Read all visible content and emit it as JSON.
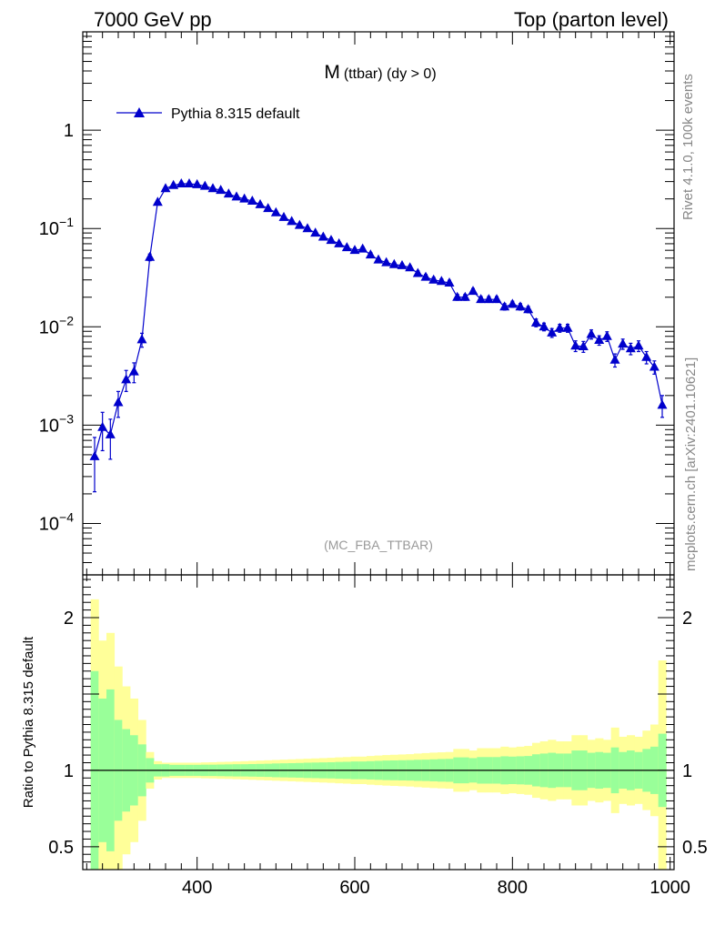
{
  "header": {
    "left": "7000 GeV pp",
    "right": "Top (parton level)"
  },
  "side_labels": {
    "rivet": "Rivet 4.1.0,  100k events",
    "mcplots": "mcplots.cern.ch [arXiv:2401.10621]"
  },
  "chart_data": [
    {
      "type": "line",
      "title_main": "M",
      "title_sub": "(ttbar) (dy > 0)",
      "watermark": "(MC_FBA_TTBAR)",
      "legend": "Pythia 8.315 default",
      "legend_position": "top-left",
      "xlim": [
        255,
        1005
      ],
      "ylim": [
        3e-05,
        10
      ],
      "yscale": "log",
      "y_tick_labels": [
        {
          "value": 1,
          "base": "1",
          "exp": ""
        },
        {
          "value": 0.1,
          "base": "10",
          "exp": "−1"
        },
        {
          "value": 0.01,
          "base": "10",
          "exp": "−2"
        },
        {
          "value": 0.001,
          "base": "10",
          "exp": "−3"
        },
        {
          "value": 0.0001,
          "base": "10",
          "exp": "−4"
        }
      ],
      "color": "#0000cc",
      "series": [
        {
          "name": "Pythia 8.315 default",
          "x": [
            270,
            280,
            290,
            300,
            310,
            320,
            330,
            340,
            350,
            360,
            370,
            380,
            390,
            400,
            410,
            420,
            430,
            440,
            450,
            460,
            470,
            480,
            490,
            500,
            510,
            520,
            530,
            540,
            550,
            560,
            570,
            580,
            590,
            600,
            610,
            620,
            630,
            640,
            650,
            660,
            670,
            680,
            690,
            700,
            710,
            720,
            730,
            740,
            750,
            760,
            770,
            780,
            790,
            800,
            810,
            820,
            830,
            840,
            850,
            860,
            870,
            880,
            890,
            900,
            910,
            920,
            930,
            940,
            950,
            960,
            970,
            980,
            990
          ],
          "y": [
            0.00048,
            0.00095,
            0.0008,
            0.0017,
            0.0029,
            0.0035,
            0.0074,
            0.051,
            0.185,
            0.255,
            0.275,
            0.285,
            0.285,
            0.28,
            0.27,
            0.255,
            0.245,
            0.225,
            0.21,
            0.2,
            0.19,
            0.175,
            0.16,
            0.145,
            0.13,
            0.118,
            0.108,
            0.1,
            0.09,
            0.082,
            0.076,
            0.07,
            0.064,
            0.06,
            0.062,
            0.054,
            0.048,
            0.045,
            0.043,
            0.042,
            0.04,
            0.035,
            0.032,
            0.03,
            0.029,
            0.028,
            0.02,
            0.02,
            0.023,
            0.019,
            0.019,
            0.019,
            0.016,
            0.017,
            0.016,
            0.015,
            0.011,
            0.01,
            0.0087,
            0.0097,
            0.0097,
            0.0064,
            0.0063,
            0.0084,
            0.0073,
            0.008,
            0.0046,
            0.0067,
            0.006,
            0.0064,
            0.0049,
            0.0039,
            0.0016
          ],
          "err": [
            0.00027,
            0.0004,
            0.00035,
            0.0005,
            0.0007,
            0.0008,
            0.0012,
            0.004,
            0.008,
            0.01,
            0.01,
            0.01,
            0.01,
            0.01,
            0.01,
            0.009,
            0.009,
            0.008,
            0.008,
            0.007,
            0.007,
            0.007,
            0.006,
            0.006,
            0.005,
            0.005,
            0.005,
            0.004,
            0.004,
            0.004,
            0.004,
            0.003,
            0.003,
            0.003,
            0.003,
            0.003,
            0.002,
            0.002,
            0.002,
            0.002,
            0.002,
            0.002,
            0.002,
            0.0018,
            0.0017,
            0.0017,
            0.0014,
            0.0014,
            0.0015,
            0.0013,
            0.0013,
            0.0013,
            0.0012,
            0.0012,
            0.0012,
            0.0011,
            0.001,
            0.0009,
            0.0009,
            0.0009,
            0.0009,
            0.0008,
            0.0008,
            0.0009,
            0.0008,
            0.0009,
            0.0007,
            0.0008,
            0.0008,
            0.0008,
            0.0007,
            0.0006,
            0.0004
          ]
        }
      ]
    },
    {
      "type": "area",
      "ylabel": "Ratio to Pythia 8.315 default",
      "xlim": [
        255,
        1005
      ],
      "ylim": [
        0.35,
        2.28
      ],
      "x_tick_labels": [
        400,
        600,
        800,
        1000
      ],
      "y_tick_labels": [
        0.5,
        1,
        2
      ],
      "reference_line": 1,
      "band_colors": {
        "inner": "#99ff99",
        "outer": "#ffff99"
      },
      "bin_width": 10,
      "bins_x": [
        270,
        280,
        290,
        300,
        310,
        320,
        330,
        340,
        350,
        360,
        370,
        380,
        390,
        400,
        410,
        420,
        430,
        440,
        450,
        460,
        470,
        480,
        490,
        500,
        510,
        520,
        530,
        540,
        550,
        560,
        570,
        580,
        590,
        600,
        610,
        620,
        630,
        640,
        650,
        660,
        670,
        680,
        690,
        700,
        710,
        720,
        730,
        740,
        750,
        760,
        770,
        780,
        790,
        800,
        810,
        820,
        830,
        840,
        850,
        860,
        870,
        880,
        890,
        900,
        910,
        920,
        930,
        940,
        950,
        960,
        970,
        980,
        990
      ],
      "inner_upper": [
        1.65,
        1.47,
        1.53,
        1.33,
        1.27,
        1.23,
        1.17,
        1.08,
        1.04,
        1.04,
        1.036,
        1.036,
        1.036,
        1.036,
        1.037,
        1.037,
        1.038,
        1.039,
        1.04,
        1.04,
        1.041,
        1.042,
        1.043,
        1.045,
        1.046,
        1.047,
        1.048,
        1.05,
        1.051,
        1.052,
        1.053,
        1.055,
        1.056,
        1.058,
        1.058,
        1.06,
        1.062,
        1.064,
        1.065,
        1.066,
        1.067,
        1.069,
        1.07,
        1.072,
        1.074,
        1.075,
        1.085,
        1.085,
        1.08,
        1.087,
        1.087,
        1.087,
        1.092,
        1.09,
        1.092,
        1.094,
        1.105,
        1.11,
        1.115,
        1.11,
        1.11,
        1.13,
        1.13,
        1.115,
        1.12,
        1.115,
        1.15,
        1.12,
        1.13,
        1.12,
        1.14,
        1.155,
        1.24
      ],
      "inner_lower": [
        0.35,
        0.53,
        0.47,
        0.67,
        0.73,
        0.77,
        0.83,
        0.92,
        0.96,
        0.96,
        0.964,
        0.964,
        0.964,
        0.964,
        0.963,
        0.963,
        0.962,
        0.961,
        0.96,
        0.96,
        0.959,
        0.958,
        0.957,
        0.955,
        0.954,
        0.953,
        0.952,
        0.95,
        0.949,
        0.948,
        0.947,
        0.945,
        0.944,
        0.942,
        0.942,
        0.94,
        0.938,
        0.936,
        0.935,
        0.934,
        0.933,
        0.931,
        0.93,
        0.928,
        0.926,
        0.925,
        0.915,
        0.915,
        0.92,
        0.913,
        0.913,
        0.913,
        0.908,
        0.91,
        0.908,
        0.906,
        0.895,
        0.89,
        0.885,
        0.89,
        0.89,
        0.87,
        0.87,
        0.885,
        0.88,
        0.885,
        0.85,
        0.88,
        0.87,
        0.88,
        0.86,
        0.845,
        0.76
      ],
      "outer_upper": [
        2.12,
        1.85,
        1.9,
        1.68,
        1.55,
        1.47,
        1.33,
        1.12,
        1.06,
        1.05,
        1.05,
        1.05,
        1.05,
        1.05,
        1.052,
        1.053,
        1.055,
        1.056,
        1.058,
        1.06,
        1.062,
        1.064,
        1.066,
        1.068,
        1.07,
        1.072,
        1.074,
        1.076,
        1.078,
        1.08,
        1.082,
        1.085,
        1.087,
        1.09,
        1.09,
        1.094,
        1.097,
        1.1,
        1.102,
        1.104,
        1.106,
        1.11,
        1.113,
        1.116,
        1.118,
        1.12,
        1.14,
        1.14,
        1.13,
        1.145,
        1.145,
        1.145,
        1.155,
        1.15,
        1.155,
        1.16,
        1.18,
        1.19,
        1.2,
        1.19,
        1.19,
        1.23,
        1.23,
        1.2,
        1.21,
        1.2,
        1.28,
        1.22,
        1.23,
        1.22,
        1.26,
        1.3,
        1.72
      ],
      "outer_lower": [
        0.35,
        0.35,
        0.35,
        0.35,
        0.45,
        0.53,
        0.67,
        0.88,
        0.94,
        0.95,
        0.95,
        0.95,
        0.95,
        0.95,
        0.948,
        0.947,
        0.945,
        0.944,
        0.942,
        0.94,
        0.938,
        0.936,
        0.934,
        0.932,
        0.93,
        0.928,
        0.926,
        0.924,
        0.922,
        0.92,
        0.918,
        0.915,
        0.913,
        0.91,
        0.91,
        0.906,
        0.903,
        0.9,
        0.898,
        0.896,
        0.894,
        0.89,
        0.887,
        0.884,
        0.882,
        0.88,
        0.86,
        0.86,
        0.87,
        0.855,
        0.855,
        0.855,
        0.845,
        0.85,
        0.845,
        0.84,
        0.82,
        0.81,
        0.8,
        0.81,
        0.81,
        0.77,
        0.77,
        0.8,
        0.79,
        0.8,
        0.72,
        0.78,
        0.77,
        0.78,
        0.74,
        0.7,
        0.35
      ]
    }
  ]
}
